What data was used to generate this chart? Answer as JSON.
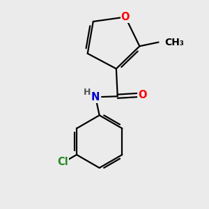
{
  "bg_color": "#ebebeb",
  "bond_color": "#000000",
  "bond_width": 1.6,
  "atom_colors": {
    "O": "#ff0000",
    "N": "#0000cd",
    "Cl": "#228b22",
    "C": "#000000",
    "H": "#555555"
  },
  "font_size": 10.5
}
